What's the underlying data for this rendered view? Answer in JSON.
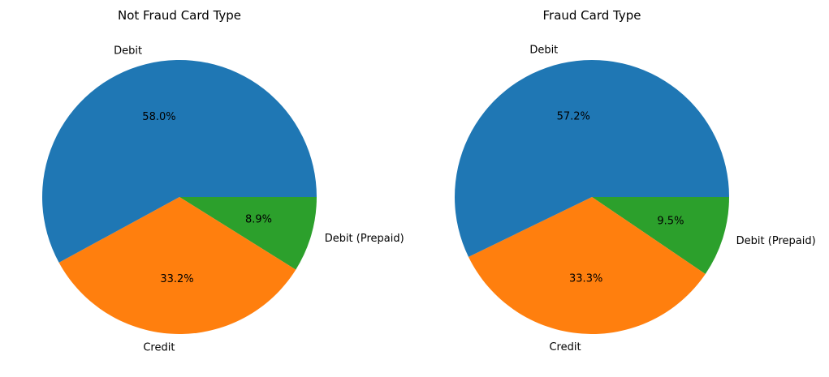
{
  "chart_data": [
    {
      "type": "pie",
      "title": "Not Fraud Card Type",
      "categories": [
        "Debit",
        "Credit",
        "Debit (Prepaid)"
      ],
      "values": [
        58.0,
        33.2,
        8.9
      ],
      "value_labels": [
        "58.0%",
        "33.2%",
        "8.9%"
      ],
      "colors": [
        "#1f77b4",
        "#ff7f0e",
        "#2ca02c"
      ],
      "start_angle_deg": 0,
      "direction": "counterclockwise"
    },
    {
      "type": "pie",
      "title": "Fraud Card Type",
      "categories": [
        "Debit",
        "Credit",
        "Debit (Prepaid)"
      ],
      "values": [
        57.2,
        33.3,
        9.5
      ],
      "value_labels": [
        "57.2%",
        "33.3%",
        "9.5%"
      ],
      "colors": [
        "#1f77b4",
        "#ff7f0e",
        "#2ca02c"
      ],
      "start_angle_deg": 0,
      "direction": "counterclockwise"
    }
  ]
}
